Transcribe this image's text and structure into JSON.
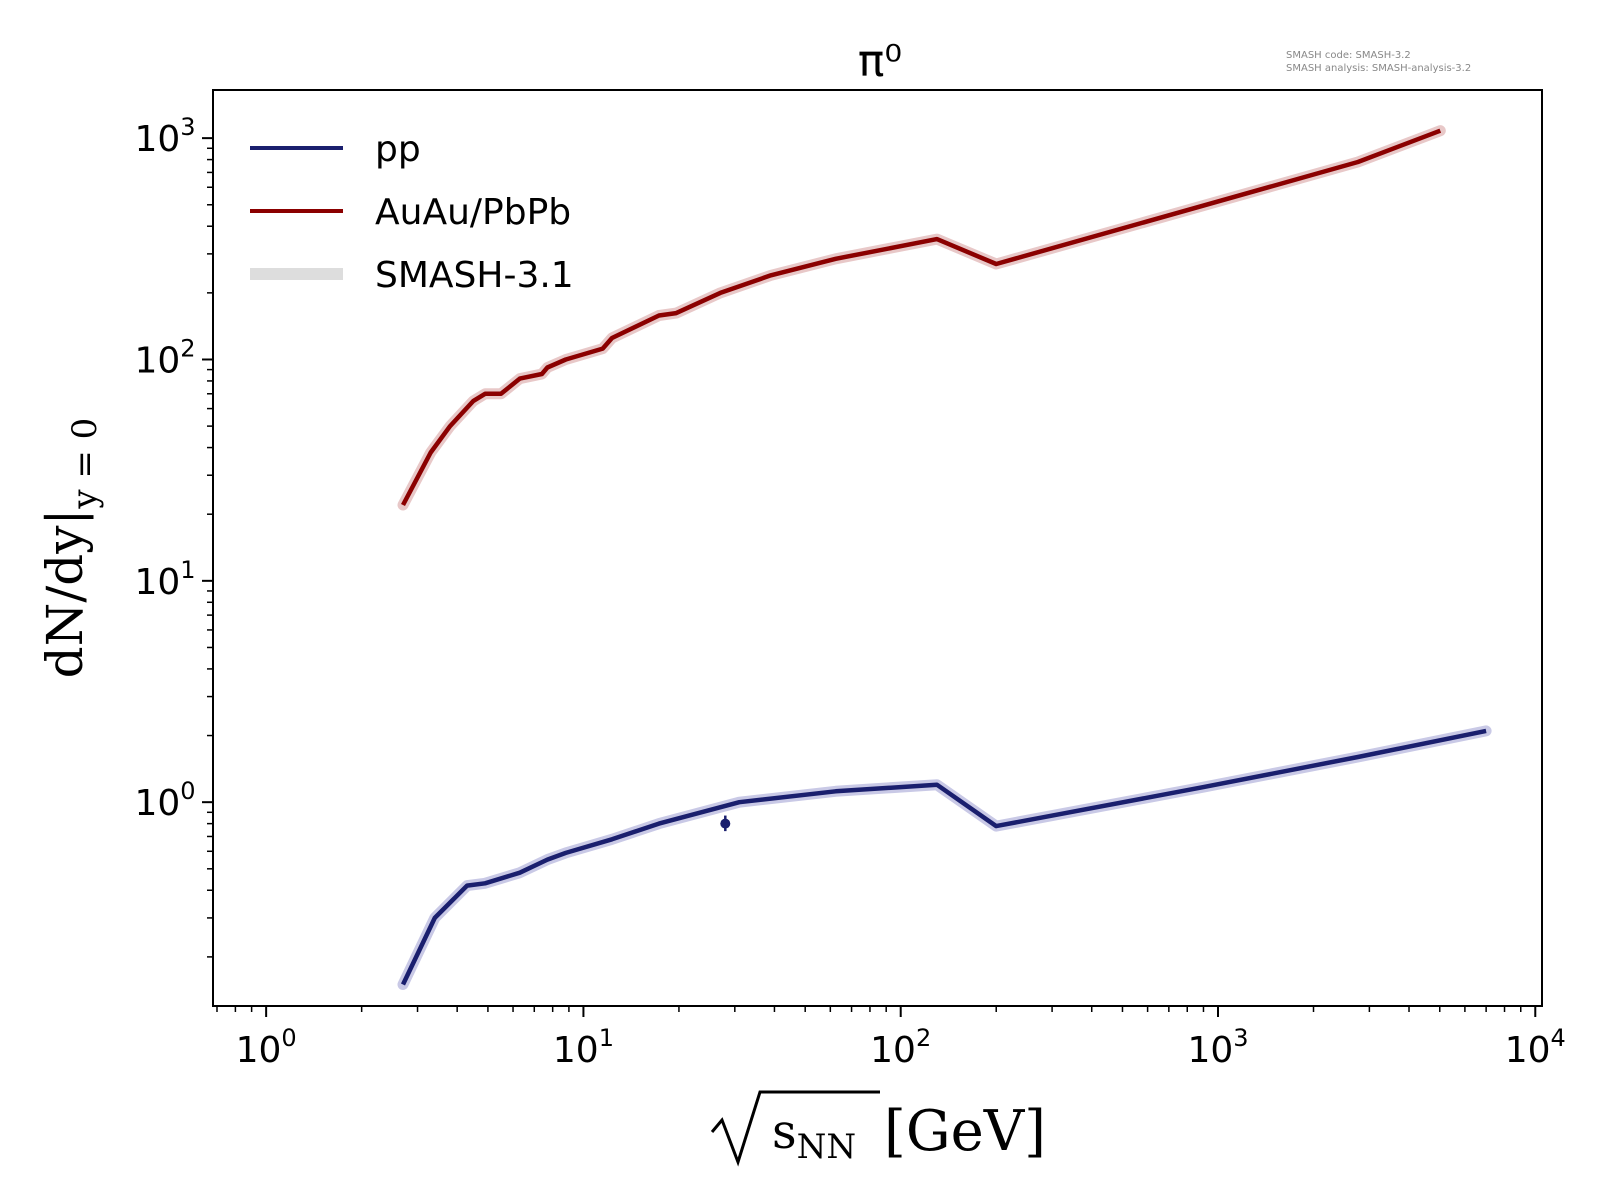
{
  "watermark": {
    "line1": "SMASH code:      SMASH-3.2",
    "line2": "SMASH analysis: SMASH-analysis-3.2"
  },
  "chart_data": {
    "type": "line",
    "title": "π⁰",
    "xlabel": "[GeV]",
    "xlabel_radicand": "s",
    "xlabel_subscript": "NN",
    "ylabel": "dN/dy|",
    "ylabel_subscript": "y = 0",
    "xscale": "log",
    "yscale": "log",
    "xlim": [
      0.68,
      10500
    ],
    "ylim": [
      0.12,
      1650
    ],
    "legend_placement": "top-left",
    "x_ticks": [
      {
        "base": "10",
        "exp": "0",
        "value": 1
      },
      {
        "base": "10",
        "exp": "1",
        "value": 10
      },
      {
        "base": "10",
        "exp": "2",
        "value": 100
      },
      {
        "base": "10",
        "exp": "3",
        "value": 1000
      },
      {
        "base": "10",
        "exp": "4",
        "value": 10000
      }
    ],
    "y_ticks": [
      {
        "base": "10",
        "exp": "0",
        "value": 1
      },
      {
        "base": "10",
        "exp": "1",
        "value": 10
      },
      {
        "base": "10",
        "exp": "2",
        "value": 100
      },
      {
        "base": "10",
        "exp": "3",
        "value": 1000
      }
    ],
    "series": [
      {
        "name": "pp",
        "color": "#1a1f6e",
        "band_color": "#c9c9e6",
        "x": [
          2.7,
          3.4,
          4.3,
          4.9,
          6.3,
          7.7,
          8.8,
          12.3,
          17.3,
          31.0,
          62.4,
          130,
          200,
          900,
          2760,
          7000
        ],
        "y": [
          0.15,
          0.3,
          0.42,
          0.43,
          0.48,
          0.55,
          0.59,
          0.68,
          0.8,
          1.0,
          1.12,
          1.2,
          0.78,
          1.17,
          1.6,
          2.1
        ]
      },
      {
        "name": "AuAu/PbPb",
        "color": "#8b0000",
        "band_color": "#e8c8c8",
        "x": [
          2.7,
          3.3,
          3.8,
          4.5,
          4.9,
          5.5,
          6.3,
          7.4,
          7.7,
          8.8,
          11.5,
          12.3,
          17.3,
          19.6,
          27,
          39,
          62.4,
          130,
          200,
          2760,
          5020
        ],
        "y": [
          22,
          38,
          50,
          65,
          70,
          70,
          82,
          86,
          92,
          100,
          112,
          125,
          158,
          162,
          200,
          240,
          285,
          350,
          270,
          780,
          1080
        ]
      },
      {
        "name": "SMASH-3.1",
        "color": "#dddddd"
      }
    ],
    "points": [
      {
        "series": "pp",
        "x": 28,
        "y": 0.8,
        "yerr": [
          0.74,
          0.87
        ]
      }
    ]
  }
}
